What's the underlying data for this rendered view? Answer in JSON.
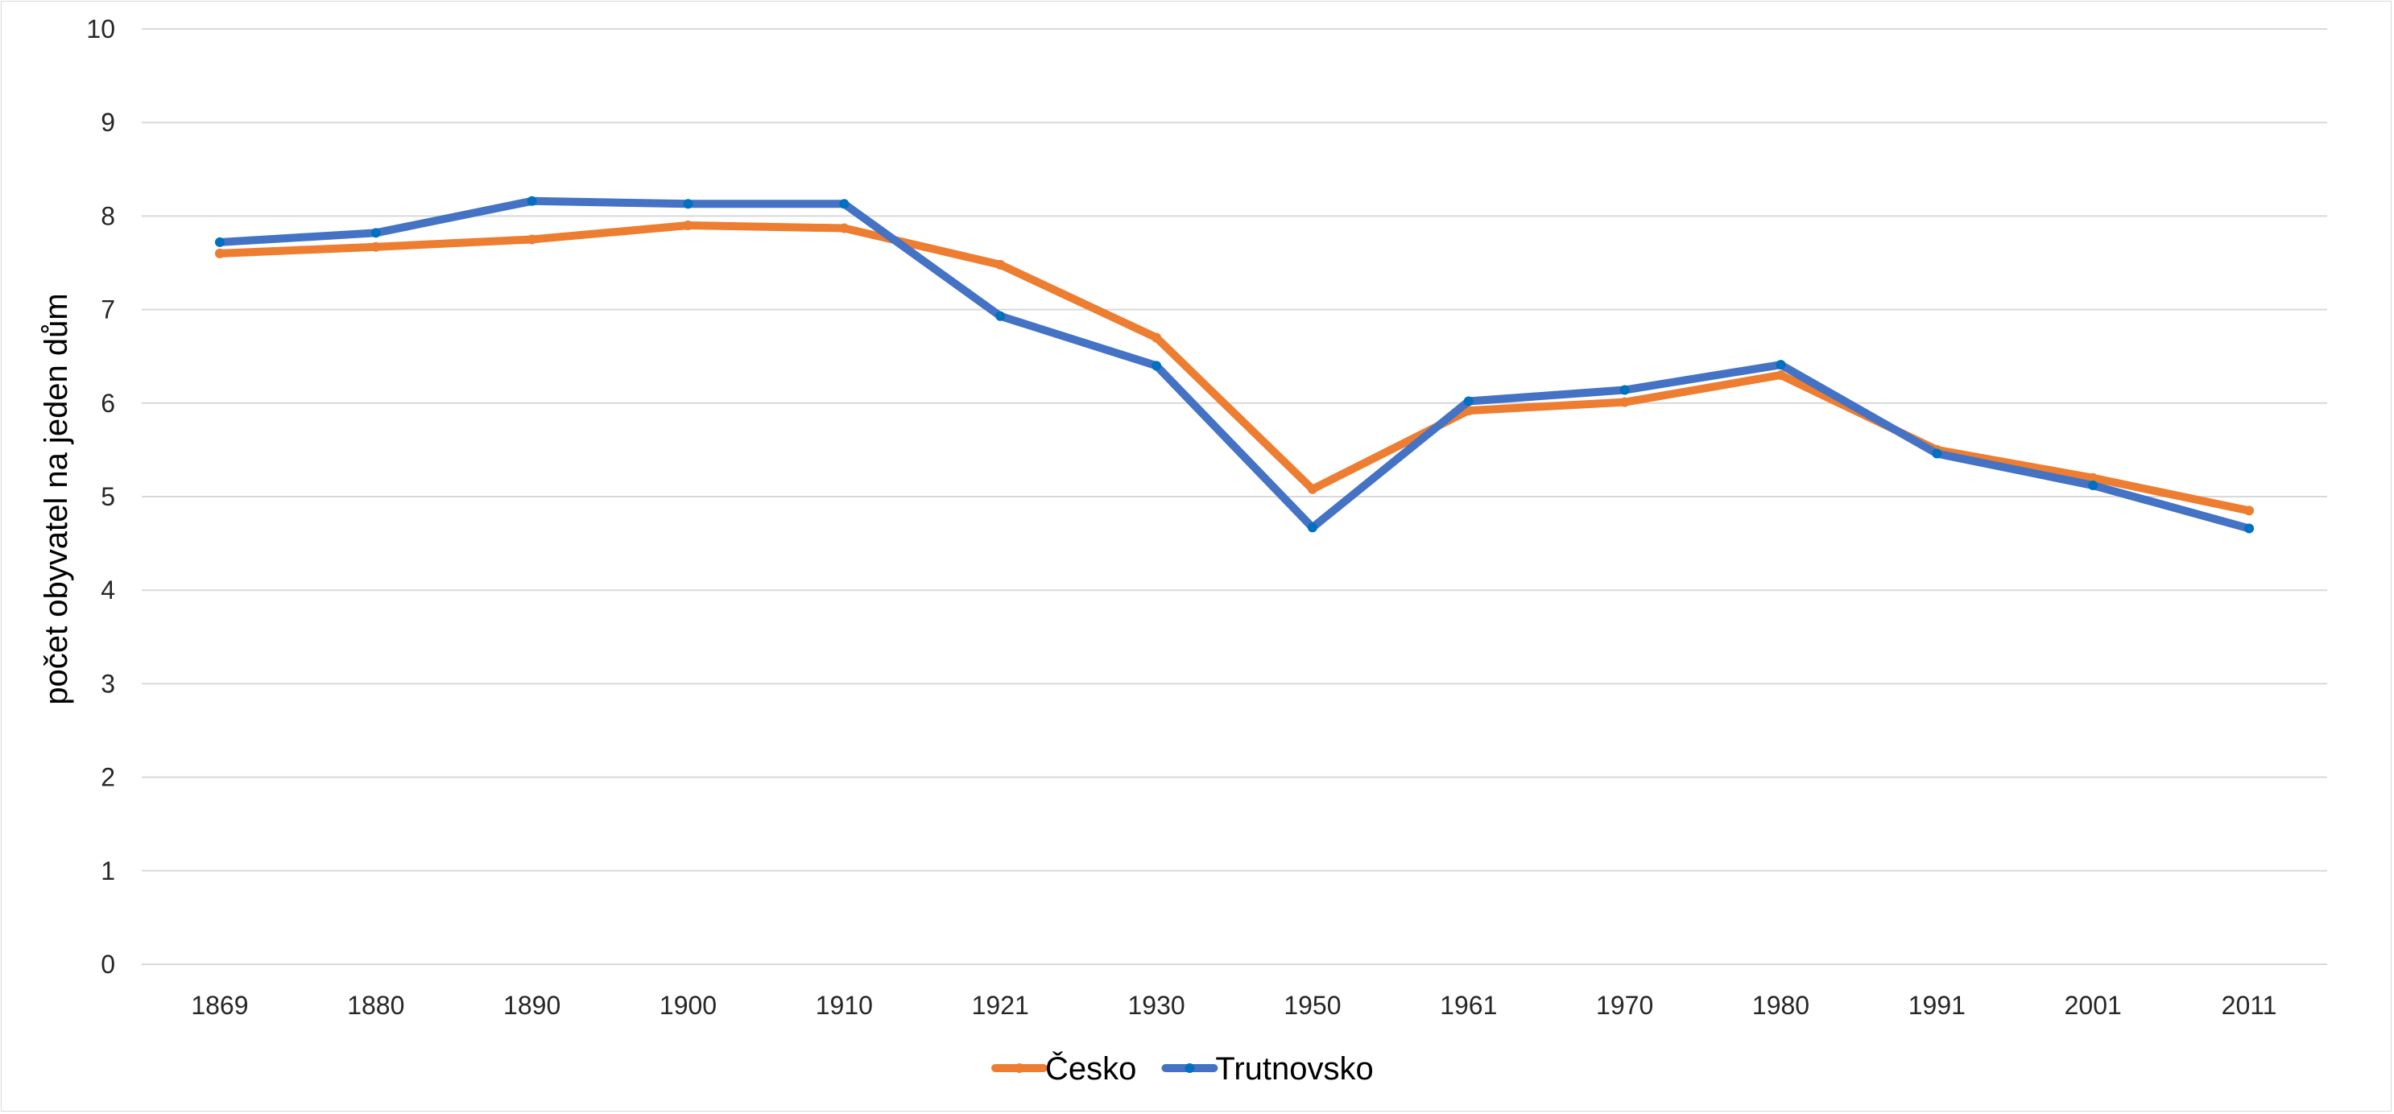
{
  "chart_data": {
    "type": "line",
    "title": "",
    "xlabel": "",
    "ylabel": "počet obyvatel na jeden dům",
    "ylim": [
      0,
      10
    ],
    "yticks": [
      0,
      1,
      2,
      3,
      4,
      5,
      6,
      7,
      8,
      9,
      10
    ],
    "grid": "horizontal",
    "legend_position": "bottom-center",
    "categories": [
      "1869",
      "1880",
      "1890",
      "1900",
      "1910",
      "1921",
      "1930",
      "1950",
      "1961",
      "1970",
      "1980",
      "1991",
      "2001",
      "2011"
    ],
    "series": [
      {
        "name": "Česko",
        "color": "#ED7D31",
        "values": [
          7.6,
          7.67,
          7.75,
          7.9,
          7.87,
          7.48,
          6.7,
          5.08,
          5.92,
          6.01,
          6.3,
          5.5,
          5.2,
          4.85
        ]
      },
      {
        "name": "Trutnovsko",
        "color": "#4472C4",
        "marker_color": "#0070C0",
        "values": [
          7.72,
          7.82,
          8.16,
          8.13,
          8.13,
          6.93,
          6.4,
          4.67,
          6.02,
          6.14,
          6.41,
          5.46,
          5.12,
          4.66
        ]
      }
    ]
  }
}
